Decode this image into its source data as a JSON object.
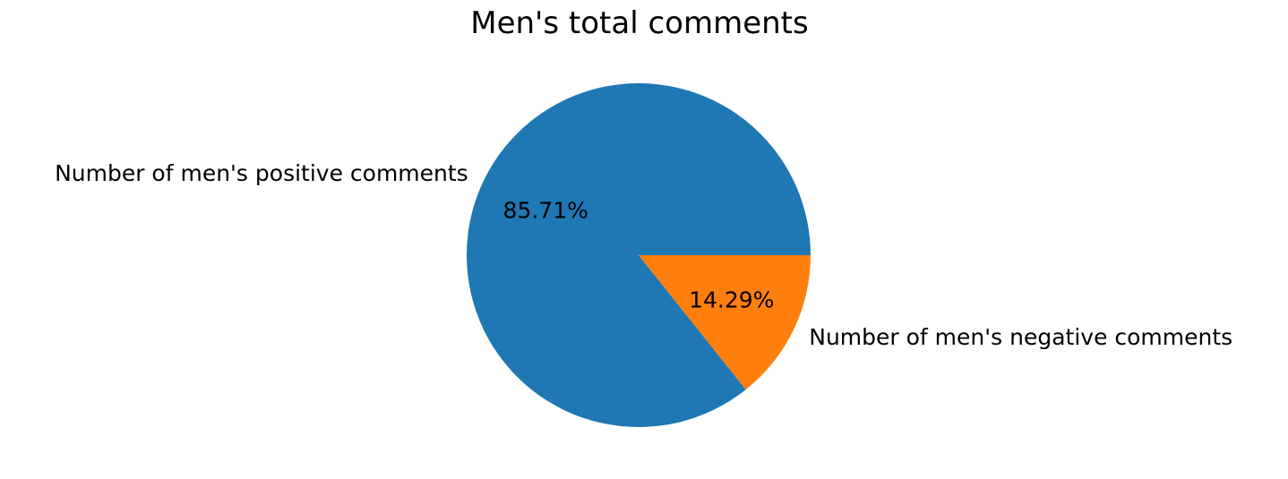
{
  "chart_data": {
    "type": "pie",
    "title": "Men's total comments",
    "labels": [
      "Number of men's positive comments",
      "Number of men's negative comments"
    ],
    "values": [
      85.71,
      14.29
    ],
    "percent_labels": [
      "85.71%",
      "14.29%"
    ],
    "colors": [
      "#1f77b4",
      "#ff7f0e"
    ],
    "start_angle_deg": 0,
    "direction": "counterclockwise"
  }
}
